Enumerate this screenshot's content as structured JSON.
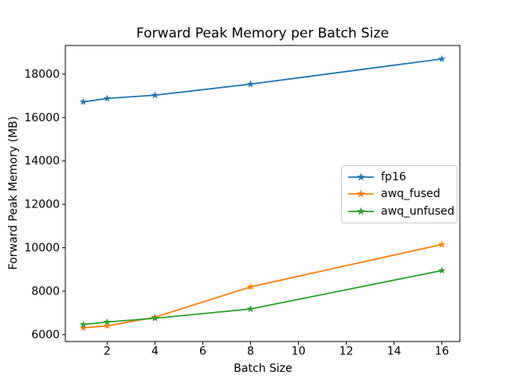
{
  "figure": {
    "background": "#ffffff",
    "text_color": "#000000",
    "axes_color": "#000000"
  },
  "chart_data": {
    "type": "line",
    "title": "Forward Peak Memory per Batch Size",
    "xlabel": "Batch Size",
    "ylabel": "Forward Peak Memory (MB)",
    "x": [
      1,
      2,
      4,
      8,
      16
    ],
    "series": [
      {
        "name": "fp16",
        "color": "#1f77b4",
        "marker": "star",
        "values": [
          16720,
          16880,
          17030,
          17540,
          18700
        ]
      },
      {
        "name": "awq_fused",
        "color": "#ff7f0e",
        "marker": "star",
        "values": [
          6310,
          6400,
          6800,
          8200,
          10150
        ]
      },
      {
        "name": "awq_unfused",
        "color": "#2ca02c",
        "marker": "star",
        "values": [
          6460,
          6580,
          6750,
          7180,
          8950
        ]
      }
    ],
    "xticks": [
      2,
      4,
      6,
      8,
      10,
      12,
      14,
      16
    ],
    "yticks": [
      6000,
      8000,
      10000,
      12000,
      14000,
      16000,
      18000
    ],
    "xlim": [
      0.25,
      16.75
    ],
    "ylim": [
      5680,
      19320
    ],
    "grid": false,
    "legend": {
      "position": "center-right",
      "entries": [
        "fp16",
        "awq_fused",
        "awq_unfused"
      ]
    }
  }
}
